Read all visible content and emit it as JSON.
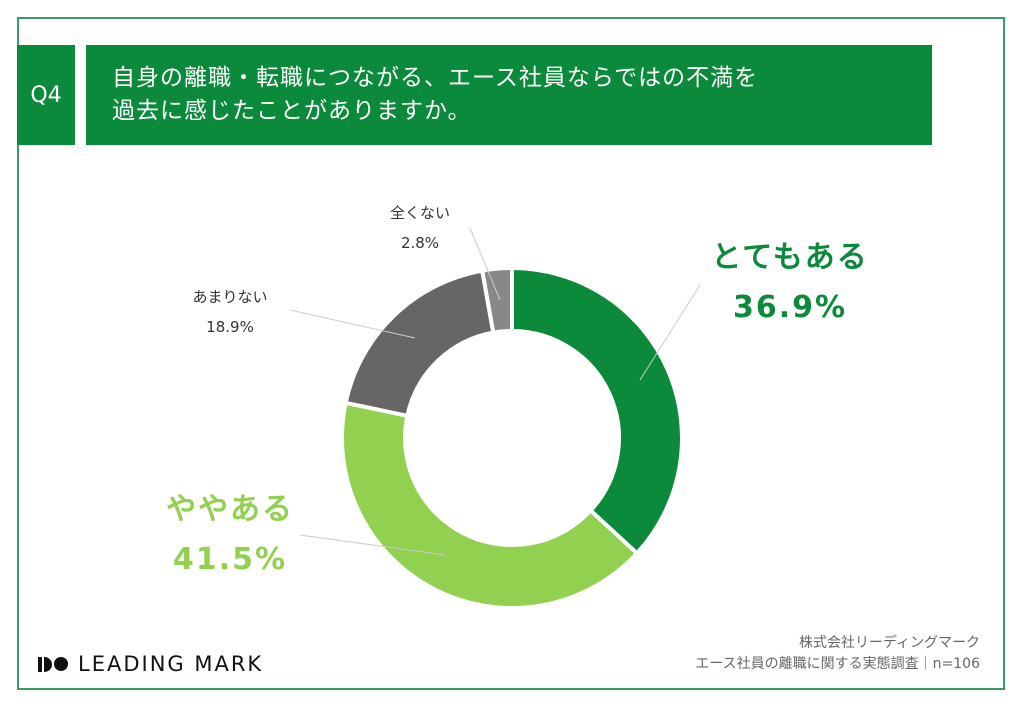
{
  "header": {
    "question_no": "Q4",
    "title_line1": "自身の離職・転職につながる、エース社員ならではの不満を",
    "title_line2": "過去に感じたことがありますか。"
  },
  "chart_data": {
    "type": "pie",
    "donut": true,
    "start": "top, clockwise",
    "categories": [
      "とてもある",
      "ややある",
      "あまりない",
      "全くない"
    ],
    "values": [
      36.9,
      41.5,
      18.9,
      2.8
    ],
    "labels": [
      "36.9%",
      "41.5%",
      "18.9%",
      "2.8%"
    ],
    "colors": [
      "#0a8a3a",
      "#92d050",
      "#666666",
      "#888888"
    ],
    "label_colors": [
      "#0a8a3a",
      "#92d050",
      "#333333",
      "#333333"
    ]
  },
  "footer": {
    "logo_text": "LEADING MARK",
    "credit_line1": "株式会社リーディングマーク",
    "credit_line2": "エース社員の離職に関する実態調査｜n=106"
  }
}
